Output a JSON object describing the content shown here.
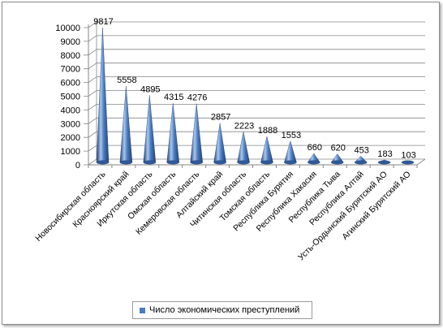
{
  "chart_data": {
    "type": "bar",
    "bar_style": "cone",
    "categories": [
      "Новосибирская область",
      "Красноярский край",
      "Иркутская область",
      "Омская область",
      "Кемеровская область",
      "Алтайский край",
      "Читинская область",
      "Томская область",
      "Республика Бурятия",
      "Республика Хакасия",
      "Республика Тыва",
      "Республика Алтай",
      "Усть-Ордынский Бурятский АО",
      "Агинский Бурятский АО"
    ],
    "series": [
      {
        "name": "Число экономических преступлений",
        "values": [
          9817,
          5558,
          4895,
          4315,
          4276,
          2857,
          2223,
          1888,
          1553,
          660,
          620,
          453,
          183,
          103
        ],
        "labels": [
          "9817",
          "5558",
          "4895",
          "4315",
          "4276",
          "2857",
          "2223",
          "1888",
          "1553",
          "660",
          "620",
          "453",
          "183",
          "103"
        ]
      }
    ],
    "ylim": [
      0,
      10000
    ],
    "yticks": [
      "0",
      "1000",
      "2000",
      "3000",
      "4000",
      "5000",
      "6000",
      "7000",
      "8000",
      "9000",
      "10000"
    ],
    "grid": true,
    "legend_position": "bottom",
    "colors": {
      "bar": "#4a7cc0",
      "bar_light": "#a9c6ee",
      "bar_dark": "#1f3f73",
      "grid": "#868686"
    }
  }
}
